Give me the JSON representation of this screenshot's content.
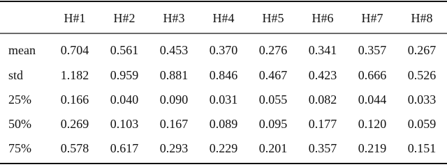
{
  "table": {
    "header": [
      "H#1",
      "H#2",
      "H#3",
      "H#4",
      "H#5",
      "H#6",
      "H#7",
      "H#8"
    ],
    "rows": [
      [
        "mean",
        "0.704",
        "0.561",
        "0.453",
        "0.370",
        "0.276",
        "0.341",
        "0.357",
        "0.267"
      ],
      [
        "std",
        "1.182",
        "0.959",
        "0.881",
        "0.846",
        "0.467",
        "0.423",
        "0.666",
        "0.526"
      ],
      [
        "25%",
        "0.166",
        "0.040",
        "0.090",
        "0.031",
        "0.055",
        "0.082",
        "0.044",
        "0.033"
      ],
      [
        "50%",
        "0.269",
        "0.103",
        "0.167",
        "0.089",
        "0.095",
        "0.177",
        "0.120",
        "0.059"
      ],
      [
        "75%",
        "0.578",
        "0.617",
        "0.293",
        "0.229",
        "0.201",
        "0.357",
        "0.219",
        "0.151"
      ]
    ]
  }
}
